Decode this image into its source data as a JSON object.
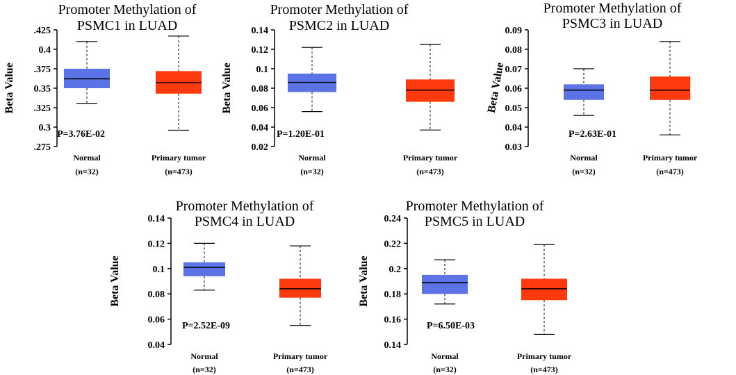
{
  "colors": {
    "normal": "#5b73e6",
    "tumor": "#ff3a0f"
  },
  "chart_data": [
    {
      "type": "box",
      "title_line1": "Promoter Methylation of",
      "title_line2": "PSMC1 in LUAD",
      "ylabel": "Beta Value",
      "ylim": [
        0.275,
        0.425
      ],
      "ticks": [
        0.425,
        0.4,
        0.375,
        0.35,
        0.325,
        0.3,
        0.275
      ],
      "tick_labels": [
        ".425",
        "0.4",
        ".375",
        "0.35",
        ".325",
        "0.3",
        ".275"
      ],
      "pvalue": "P=3.76E-02",
      "boxes": [
        {
          "name": "Normal",
          "n": "(n=32)",
          "min": 0.33,
          "q1": 0.35,
          "median": 0.362,
          "q3": 0.375,
          "max": 0.41
        },
        {
          "name": "Primary tumor",
          "n": "(n=473)",
          "min": 0.296,
          "q1": 0.343,
          "median": 0.357,
          "q3": 0.372,
          "max": 0.417
        }
      ]
    },
    {
      "type": "box",
      "title_line1": "Promoter Methylation of",
      "title_line2": "PSMC2 in LUAD",
      "ylabel": "Beta Value",
      "ylim": [
        0.02,
        0.14
      ],
      "ticks": [
        0.14,
        0.12,
        0.1,
        0.08,
        0.06,
        0.04,
        0.02
      ],
      "tick_labels": [
        "0.14",
        "0.12",
        "0.1",
        "0.08",
        "0.06",
        "0.04",
        "0.02"
      ],
      "pvalue": "P=1.20E-01",
      "boxes": [
        {
          "name": "Normal",
          "n": "(n=32)",
          "min": 0.056,
          "q1": 0.076,
          "median": 0.086,
          "q3": 0.095,
          "max": 0.122
        },
        {
          "name": "Primary tumor",
          "n": "(n=473)",
          "min": 0.037,
          "q1": 0.066,
          "median": 0.078,
          "q3": 0.089,
          "max": 0.125
        }
      ]
    },
    {
      "type": "box",
      "title_line1": "Promoter Methylation of",
      "title_line2": "PSMC3 in LUAD",
      "ylabel": "Beta Value",
      "ylim": [
        0.03,
        0.09
      ],
      "ticks": [
        0.09,
        0.08,
        0.07,
        0.06,
        0.05,
        0.04,
        0.03
      ],
      "tick_labels": [
        "0.09",
        "0.08",
        "0.07",
        "0.06",
        "0.05",
        "0.04",
        "0.03"
      ],
      "pvalue": "P=2.63E-01",
      "boxes": [
        {
          "name": "Normal",
          "n": "(n=32)",
          "min": 0.046,
          "q1": 0.054,
          "median": 0.059,
          "q3": 0.062,
          "max": 0.07
        },
        {
          "name": "Primary tumor",
          "n": "(n=473)",
          "min": 0.036,
          "q1": 0.054,
          "median": 0.059,
          "q3": 0.066,
          "max": 0.084
        }
      ]
    },
    {
      "type": "box",
      "title_line1": "Promoter Methylation of",
      "title_line2": "PSMC4 in LUAD",
      "ylabel": "Beta Value",
      "ylim": [
        0.04,
        0.14
      ],
      "ticks": [
        0.14,
        0.12,
        0.1,
        0.08,
        0.06,
        0.04
      ],
      "tick_labels": [
        "0.14",
        "0.12",
        "0.1",
        "0.08",
        "0.06",
        "0.04"
      ],
      "pvalue": "P=2.52E-09",
      "boxes": [
        {
          "name": "Normal",
          "n": "(n=32)",
          "min": 0.083,
          "q1": 0.094,
          "median": 0.101,
          "q3": 0.105,
          "max": 0.12
        },
        {
          "name": "Primary tumor",
          "n": "(n=473)",
          "min": 0.055,
          "q1": 0.077,
          "median": 0.084,
          "q3": 0.092,
          "max": 0.118
        }
      ]
    },
    {
      "type": "box",
      "title_line1": "Promoter Methylation of",
      "title_line2": "PSMC5 in LUAD",
      "ylabel": "Beta Value",
      "ylim": [
        0.14,
        0.24
      ],
      "ticks": [
        0.24,
        0.22,
        0.2,
        0.18,
        0.16,
        0.14
      ],
      "tick_labels": [
        "0.24",
        "0.22",
        "0.2",
        "0.18",
        "0.16",
        "0.14"
      ],
      "pvalue": "P=6.50E-03",
      "boxes": [
        {
          "name": "Normal",
          "n": "(n=32)",
          "min": 0.172,
          "q1": 0.18,
          "median": 0.189,
          "q3": 0.195,
          "max": 0.207
        },
        {
          "name": "Primary tumor",
          "n": "(n=473)",
          "min": 0.148,
          "q1": 0.175,
          "median": 0.184,
          "q3": 0.192,
          "max": 0.219
        }
      ]
    }
  ]
}
